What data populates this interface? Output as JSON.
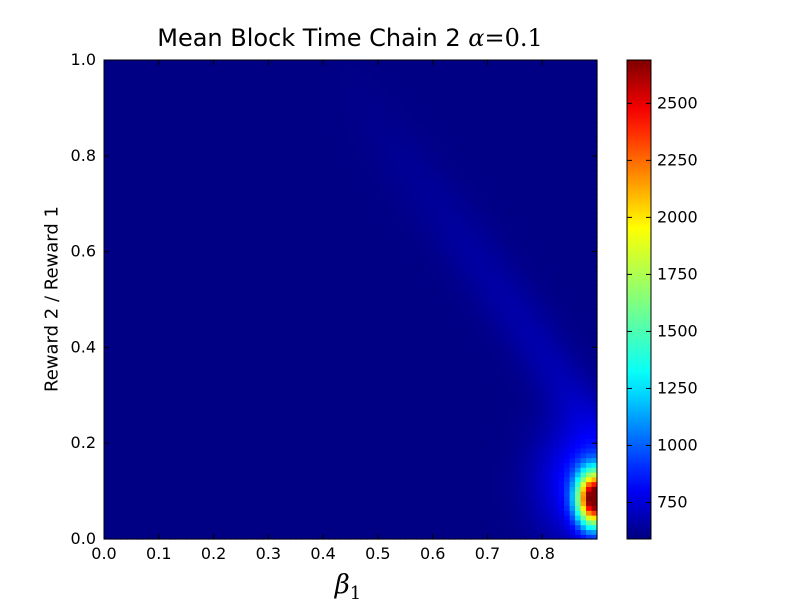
{
  "chart_data": {
    "type": "heatmap",
    "title": {
      "text": "Mean Block Time Chain 2",
      "math_symbol": "α",
      "math_eq": "=0.1"
    },
    "xlabel": {
      "symbol": "β",
      "subscript": "1"
    },
    "ylabel": "Reward 2 / Reward 1",
    "xlim": [
      0.0,
      0.9
    ],
    "ylim": [
      0.0,
      1.0
    ],
    "x_ticks": [
      "0.0",
      "0.1",
      "0.2",
      "0.3",
      "0.4",
      "0.5",
      "0.6",
      "0.7",
      "0.8"
    ],
    "y_ticks": [
      "0.0",
      "0.2",
      "0.4",
      "0.6",
      "0.8",
      "1.0"
    ],
    "colorbar": {
      "range": [
        590,
        2690
      ],
      "ticks": [
        "750",
        "1000",
        "1250",
        "1500",
        "1750",
        "2000",
        "2250",
        "2500"
      ],
      "colormap": "jet"
    },
    "colormap_stops": [
      "#00007f",
      "#0000ff",
      "#00ffff",
      "#ffff00",
      "#ff0000",
      "#7f0000"
    ],
    "grid": false
  }
}
